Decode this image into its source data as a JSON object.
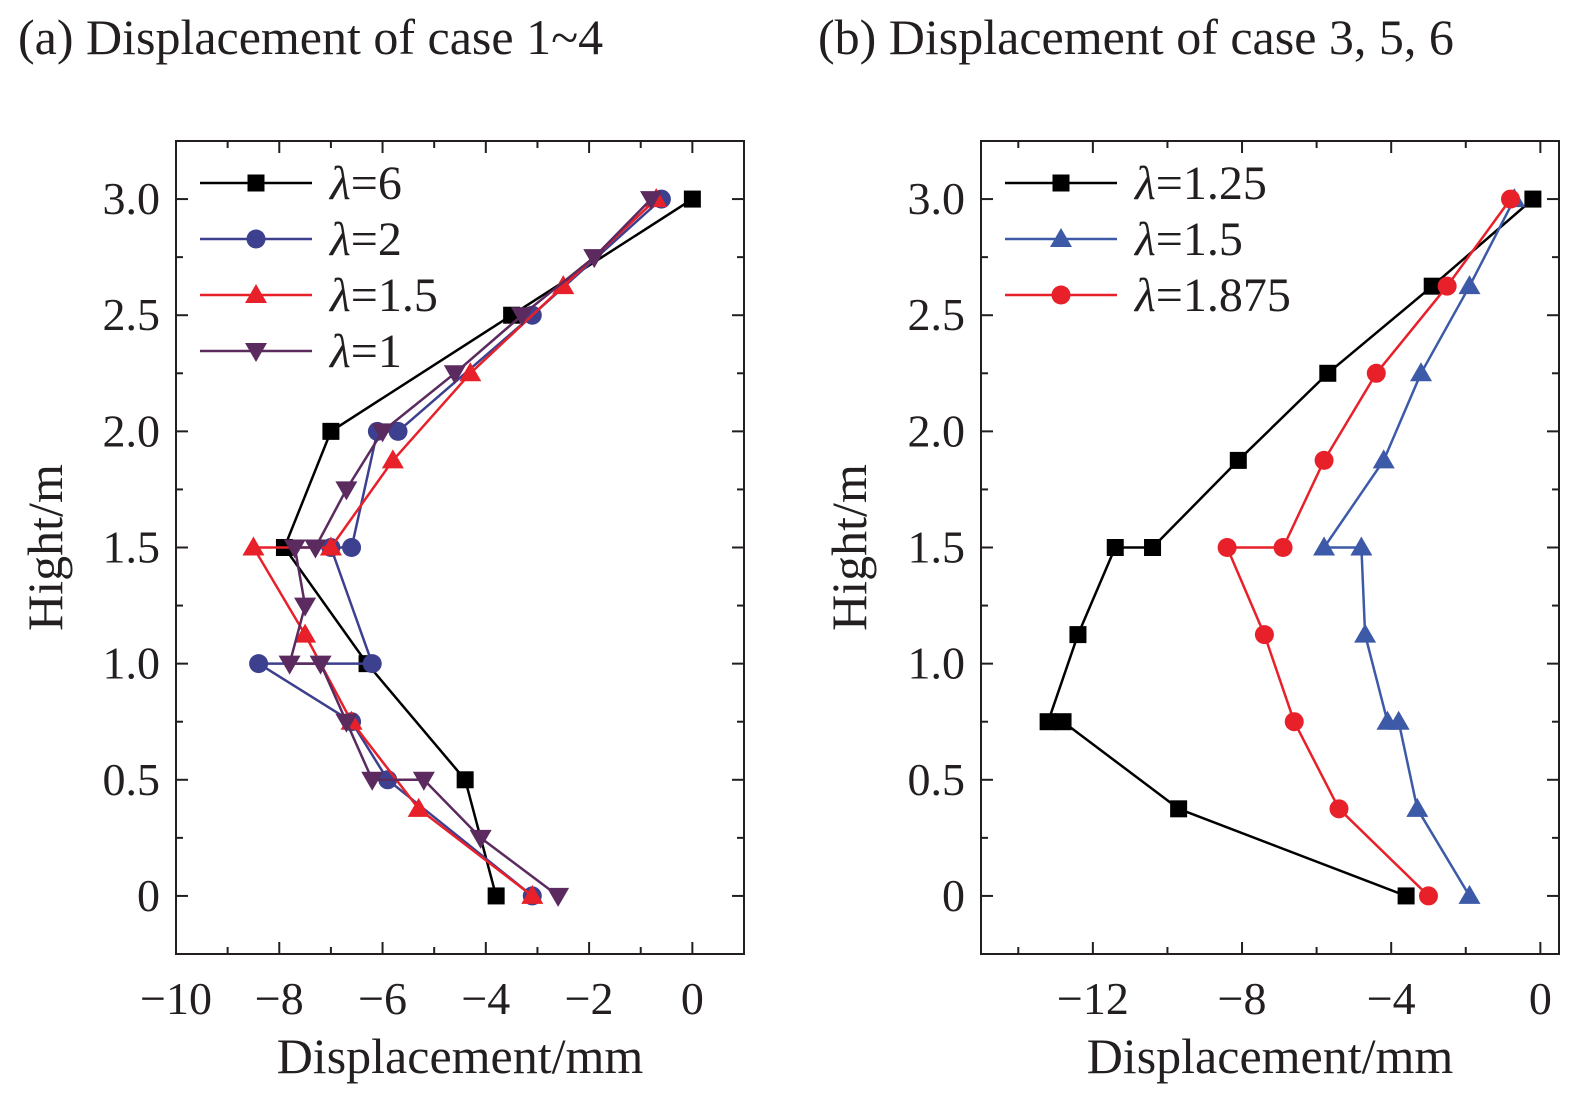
{
  "chart_data": [
    {
      "type": "line",
      "title": "(a) Displacement of case 1~4",
      "xlabel": "Displacement/mm",
      "ylabel": "Hight/m",
      "xlim": [
        -10,
        1
      ],
      "ylim": [
        -0.25,
        3.25
      ],
      "xticks": [
        -10,
        -8,
        -6,
        -4,
        -2,
        0
      ],
      "xtick_labels": [
        "−10",
        "−8",
        "−6",
        "−4",
        "−2",
        "0"
      ],
      "yticks": [
        0,
        0.5,
        1.0,
        1.5,
        2.0,
        2.5,
        3.0
      ],
      "ytick_labels": [
        "0",
        "0.5",
        "1.0",
        "1.5",
        "2.0",
        "2.5",
        "3.0"
      ],
      "legend_position": "top-left",
      "grid": false,
      "series": [
        {
          "name": "6",
          "color": "#000000",
          "marker": "square",
          "points": [
            [
              -3.8,
              0
            ],
            [
              -4.4,
              0.5
            ],
            [
              -6.3,
              1.0
            ],
            [
              -7.9,
              1.5
            ],
            [
              -7.0,
              2.0
            ],
            [
              -3.5,
              2.5
            ],
            [
              0.0,
              3.0
            ]
          ]
        },
        {
          "name": "2",
          "color": "#3d3f8f",
          "marker": "circle",
          "points": [
            [
              -3.1,
              0
            ],
            [
              -5.9,
              0.5
            ],
            [
              -6.6,
              0.75
            ],
            [
              -8.4,
              1.0
            ],
            [
              -6.2,
              1.0
            ],
            [
              -7.0,
              1.5
            ],
            [
              -6.6,
              1.5
            ],
            [
              -6.1,
              2.0
            ],
            [
              -5.7,
              2.0
            ],
            [
              -3.1,
              2.5
            ],
            [
              -0.6,
              3.0
            ]
          ]
        },
        {
          "name": "1.5",
          "color": "#e8202a",
          "marker": "triangle-up",
          "points": [
            [
              -3.1,
              0
            ],
            [
              -5.3,
              0.375
            ],
            [
              -6.6,
              0.75
            ],
            [
              -7.5,
              1.125
            ],
            [
              -8.5,
              1.5
            ],
            [
              -7.0,
              1.5
            ],
            [
              -5.8,
              1.875
            ],
            [
              -4.3,
              2.25
            ],
            [
              -2.5,
              2.625
            ],
            [
              -0.7,
              3.0
            ]
          ]
        },
        {
          "name": "1",
          "color": "#5b2a5e",
          "marker": "triangle-down",
          "points": [
            [
              -2.6,
              0
            ],
            [
              -4.1,
              0.25
            ],
            [
              -5.2,
              0.5
            ],
            [
              -6.2,
              0.5
            ],
            [
              -6.7,
              0.75
            ],
            [
              -7.2,
              1.0
            ],
            [
              -7.8,
              1.0
            ],
            [
              -7.5,
              1.25
            ],
            [
              -7.7,
              1.5
            ],
            [
              -7.3,
              1.5
            ],
            [
              -6.7,
              1.75
            ],
            [
              -6.0,
              2.0
            ],
            [
              -4.6,
              2.25
            ],
            [
              -3.3,
              2.5
            ],
            [
              -1.9,
              2.75
            ],
            [
              -0.8,
              3.0
            ]
          ]
        }
      ]
    },
    {
      "type": "line",
      "title": "(b) Displacement of case 3, 5, 6",
      "xlabel": "Displacement/mm",
      "ylabel": "Hight/m",
      "xlim": [
        -15,
        0.5
      ],
      "ylim": [
        -0.25,
        3.25
      ],
      "xticks": [
        -12,
        -8,
        -4,
        0
      ],
      "xtick_labels": [
        "−12",
        "−8",
        "−4",
        "0"
      ],
      "yticks": [
        0,
        0.5,
        1.0,
        1.5,
        2.0,
        2.5,
        3.0
      ],
      "ytick_labels": [
        "0",
        "0.5",
        "1.0",
        "1.5",
        "2.0",
        "2.5",
        "3.0"
      ],
      "legend_position": "top-left",
      "grid": false,
      "series": [
        {
          "name": "1.25",
          "color": "#000000",
          "marker": "square",
          "points": [
            [
              -3.6,
              0
            ],
            [
              -9.7,
              0.375
            ],
            [
              -12.8,
              0.75
            ],
            [
              -13.2,
              0.75
            ],
            [
              -12.4,
              1.125
            ],
            [
              -11.4,
              1.5
            ],
            [
              -10.4,
              1.5
            ],
            [
              -8.1,
              1.875
            ],
            [
              -5.7,
              2.25
            ],
            [
              -2.9,
              2.625
            ],
            [
              -0.2,
              3.0
            ]
          ]
        },
        {
          "name": "1.5",
          "color": "#3d5aa8",
          "marker": "triangle-up",
          "points": [
            [
              -1.9,
              0
            ],
            [
              -3.3,
              0.375
            ],
            [
              -3.8,
              0.75
            ],
            [
              -4.1,
              0.75
            ],
            [
              -4.7,
              1.125
            ],
            [
              -4.8,
              1.5
            ],
            [
              -5.8,
              1.5
            ],
            [
              -4.2,
              1.875
            ],
            [
              -3.2,
              2.25
            ],
            [
              -1.9,
              2.625
            ],
            [
              -0.7,
              3.0
            ]
          ]
        },
        {
          "name": "1.875",
          "color": "#e8202a",
          "marker": "circle",
          "points": [
            [
              -3.0,
              0
            ],
            [
              -5.4,
              0.375
            ],
            [
              -6.6,
              0.75
            ],
            [
              -7.4,
              1.125
            ],
            [
              -8.4,
              1.5
            ],
            [
              -6.9,
              1.5
            ],
            [
              -5.8,
              1.875
            ],
            [
              -4.4,
              2.25
            ],
            [
              -2.5,
              2.625
            ],
            [
              -0.8,
              3.0
            ]
          ]
        }
      ]
    }
  ]
}
